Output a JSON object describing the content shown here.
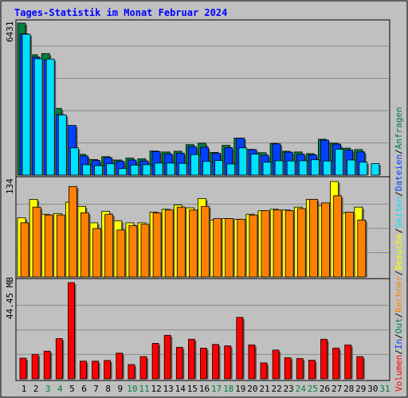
{
  "chart_data": {
    "type": "bar",
    "title": "Tages-Statistik im Monat Februar 2024",
    "x": [
      "1",
      "2",
      "3",
      "4",
      "5",
      "6",
      "7",
      "8",
      "9",
      "10",
      "11",
      "12",
      "13",
      "14",
      "15",
      "16",
      "17",
      "18",
      "19",
      "20",
      "21",
      "22",
      "23",
      "24",
      "25",
      "26",
      "27",
      "28",
      "29",
      "30",
      "31"
    ],
    "weekend_days": [
      "3",
      "4",
      "10",
      "11",
      "17",
      "18",
      "24",
      "25",
      "31"
    ],
    "panels": [
      {
        "name": "hits",
        "axis_label": "6431",
        "ylim": [
          0,
          6431
        ],
        "series": [
          {
            "name": "Anfragen",
            "color": "#008040",
            "values": [
              6431,
              5090,
              5140,
              2820,
              2080,
              880,
              660,
              780,
              640,
              720,
              690,
              1020,
              980,
              1010,
              1290,
              1350,
              960,
              1260,
              1570,
              1090,
              950,
              1340,
              1010,
              980,
              910,
              1520,
              1350,
              1140,
              1080,
              0,
              0
            ]
          },
          {
            "name": "Dateien",
            "color": "#0040ff",
            "values": [
              5980,
              4990,
              4870,
              2560,
              2100,
              810,
              620,
              740,
              590,
              640,
              600,
              1000,
              900,
              930,
              1210,
              1180,
              930,
              1160,
              1570,
              1080,
              840,
              1320,
              970,
              880,
              860,
              1480,
              1310,
              1060,
              980,
              0,
              0
            ]
          },
          {
            "name": "Seiten",
            "color": "#00e0ff",
            "values": [
              5960,
              4920,
              4910,
              2550,
              1150,
              440,
              400,
              480,
              280,
              420,
              440,
              510,
              510,
              500,
              870,
              580,
              620,
              470,
              1150,
              890,
              550,
              610,
              600,
              610,
              650,
              600,
              1090,
              640,
              550,
              490,
              0
            ]
          }
        ]
      },
      {
        "name": "visits",
        "axis_label": "134",
        "ylim": [
          0,
          134
        ],
        "series": [
          {
            "name": "Besuche",
            "color": "#ffff00",
            "values": [
              83,
              109,
              88,
              89,
              105,
              99,
              76,
              92,
              79,
              76,
              76,
              91,
              95,
              101,
              97,
              110,
              80,
              82,
              81,
              88,
              93,
              95,
              94,
              98,
              109,
              100,
              134,
              90,
              98,
              0,
              0
            ]
          },
          {
            "name": "Rechner",
            "color": "#ff8000",
            "values": [
              76,
              98,
              87,
              87,
              127,
              90,
              68,
              88,
              66,
              72,
              74,
              90,
              94,
              98,
              94,
              99,
              82,
              82,
              81,
              87,
              93,
              94,
              93,
              96,
              109,
              104,
              114,
              91,
              80,
              0,
              0
            ]
          }
        ]
      },
      {
        "name": "volume",
        "axis_label": "44.45 MB",
        "ylim": [
          0,
          44.45
        ],
        "series": [
          {
            "name": "Volumen",
            "color": "#ff0000",
            "values": [
              9.6,
              11.3,
              12.8,
              18.6,
              44.45,
              8.2,
              8.2,
              8.5,
              11.9,
              6.6,
              10.3,
              16.4,
              20.1,
              14.6,
              18.3,
              14.2,
              15.9,
              15.3,
              28.4,
              15.7,
              7.4,
              13.3,
              9.8,
              9.4,
              8.6,
              18.3,
              14.2,
              15.7,
              10.3,
              0,
              0
            ]
          }
        ]
      }
    ],
    "legend": [
      "Volumen",
      "In",
      "Out",
      "Rechner",
      "Besuche",
      "Seiten",
      "Dateien",
      "Anfragen"
    ],
    "legend_colors": {
      "Volumen": "#ff0000",
      "In": "#0040ff",
      "Out": "#008040",
      "Rechner": "#ff8000",
      "Besuche": "#ffff00",
      "Seiten": "#00e0ff",
      "Dateien": "#0040ff",
      "Anfragen": "#008040"
    },
    "legend_separator": "/",
    "grid": true
  }
}
